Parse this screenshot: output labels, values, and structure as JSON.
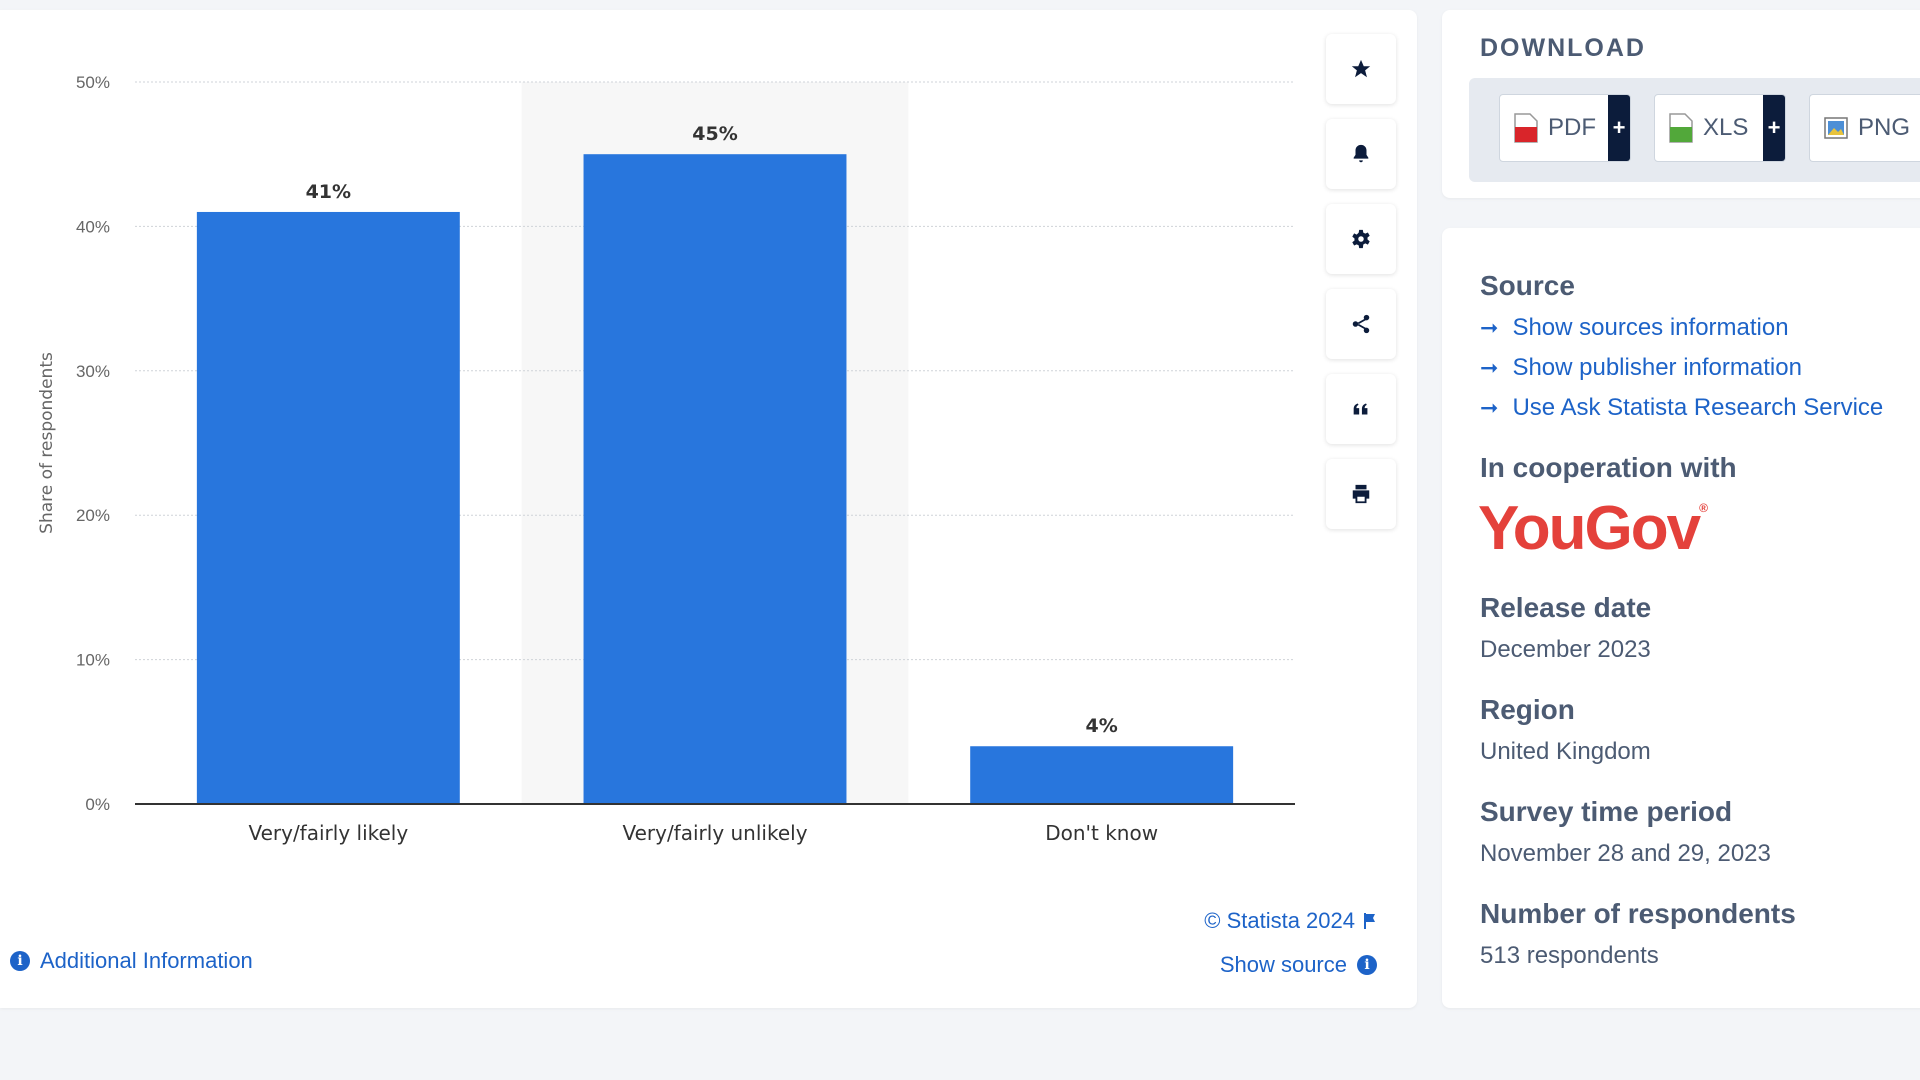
{
  "chart_data": {
    "type": "bar",
    "categories": [
      "Very/fairly likely",
      "Very/fairly unlikely",
      "Don't know"
    ],
    "values": [
      41,
      45,
      4
    ],
    "data_labels": [
      "41%",
      "45%",
      "4%"
    ],
    "ylabel": "Share of respondents",
    "ylim": [
      0,
      50
    ],
    "yticks": [
      0,
      10,
      20,
      30,
      40,
      50
    ],
    "ytick_labels": [
      "0%",
      "10%",
      "20%",
      "30%",
      "40%",
      "50%"
    ],
    "grid": true,
    "bar_color": "#2876dd"
  },
  "chart_footer": {
    "copyright": "© Statista 2024",
    "show_source": "Show source",
    "additional_info": "Additional Information"
  },
  "toolbar": {
    "icons": [
      "star-icon",
      "bell-icon",
      "gear-icon",
      "share-icon",
      "quote-icon",
      "print-icon"
    ]
  },
  "download": {
    "title": "DOWNLOAD",
    "buttons": [
      {
        "label": "PDF",
        "icon": "pdf-file-icon",
        "has_plus": true
      },
      {
        "label": "XLS",
        "icon": "xls-file-icon",
        "has_plus": true
      },
      {
        "label": "PNG",
        "icon": "png-file-icon",
        "has_plus": false
      }
    ]
  },
  "info": {
    "source_heading": "Source",
    "links": [
      "Show sources information",
      "Show publisher information",
      "Use Ask Statista Research Service"
    ],
    "cooperation_heading": "In cooperation with",
    "cooperation_logo_text": "YouGov",
    "release_heading": "Release date",
    "release_value": "December 2023",
    "region_heading": "Region",
    "region_value": "United Kingdom",
    "survey_heading": "Survey time period",
    "survey_value": "November 28 and 29, 2023",
    "respondents_heading": "Number of respondents",
    "respondents_value": "513 respondents"
  },
  "colors": {
    "accent": "#1d63c8",
    "bar": "#2876dd",
    "dark": "#0c1c3b",
    "logo": "#e4413b"
  }
}
